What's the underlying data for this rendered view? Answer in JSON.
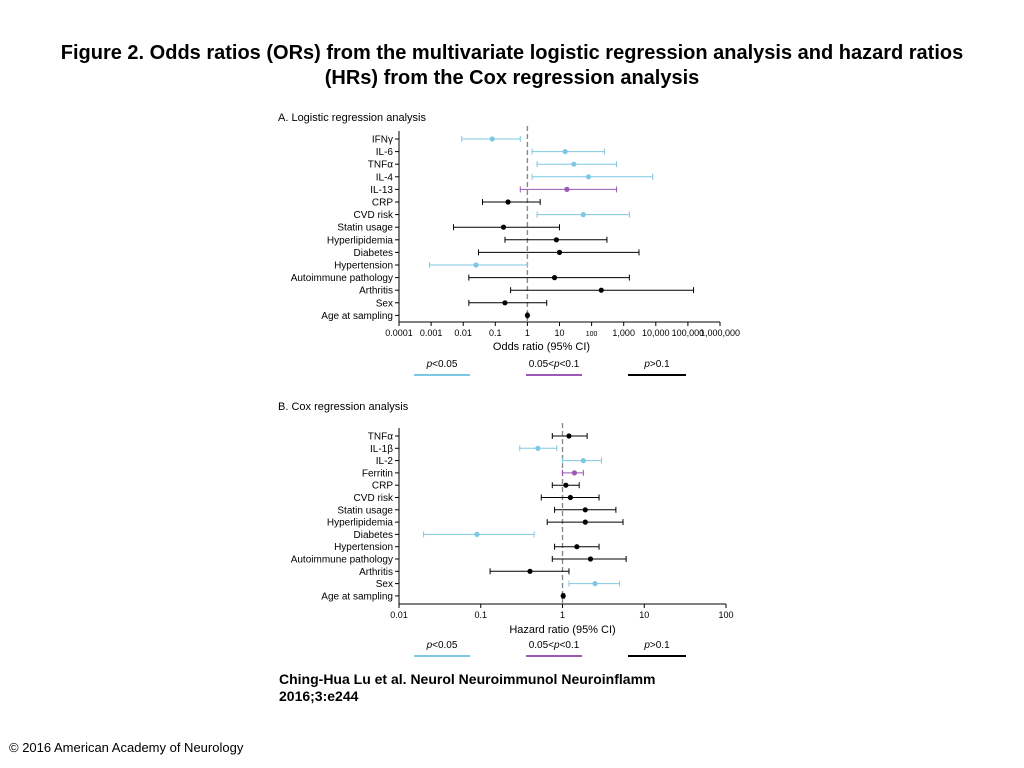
{
  "slide": {
    "title_line1": "Figure 2. Odds ratios (ORs) from the multivariate logistic regression analysis and hazard ratios",
    "title_line2": "(HRs) from the Cox regression analysis",
    "citation_line1": "Ching-Hua Lu et al. Neurol Neuroimmunol Neuroinflamm",
    "citation_line2": "2016;3:e244",
    "copyright": "© 2016 American Academy of Neurology"
  },
  "colors": {
    "significant": "#7ec8e3",
    "trend": "#9b59b6",
    "not_significant": "#000000",
    "reference_line": "#888888"
  },
  "chart_data": [
    {
      "type": "forest",
      "panel": "A. Logistic regression analysis",
      "xlabel": "Odds ratio (95% CI)",
      "xscale": "log",
      "xlim": [
        0.0001,
        1000000
      ],
      "reference_value": 1,
      "xticks": [
        {
          "value": 0.0001,
          "label": "0.0001"
        },
        {
          "value": 0.001,
          "label": "0.001"
        },
        {
          "value": 0.01,
          "label": "0.01"
        },
        {
          "value": 0.1,
          "label": "0.1"
        },
        {
          "value": 1,
          "label": "1"
        },
        {
          "value": 10,
          "label": "10"
        },
        {
          "value": 100,
          "label": "100"
        },
        {
          "value": 1000,
          "label": "1,000"
        },
        {
          "value": 10000,
          "label": "10,000"
        },
        {
          "value": 100000,
          "label": "100,000"
        },
        {
          "value": 1000000,
          "label": "1,000,000"
        }
      ],
      "legend": [
        {
          "label": "p<0.05",
          "group": "significant"
        },
        {
          "label": "0.05<p<0.1",
          "group": "trend"
        },
        {
          "label": "p>0.1",
          "group": "not_significant"
        }
      ],
      "rows": [
        {
          "label": "IFNγ",
          "or": 0.08,
          "lo": 0.009,
          "hi": 0.6,
          "group": "significant"
        },
        {
          "label": "IL-6",
          "or": 15,
          "lo": 1.4,
          "hi": 250,
          "group": "significant"
        },
        {
          "label": "TNFα",
          "or": 28,
          "lo": 2.0,
          "hi": 600,
          "group": "significant"
        },
        {
          "label": "IL-4",
          "or": 80,
          "lo": 1.4,
          "hi": 8000,
          "group": "significant"
        },
        {
          "label": "IL-13",
          "or": 17,
          "lo": 0.6,
          "hi": 600,
          "group": "trend"
        },
        {
          "label": "CRP",
          "or": 0.25,
          "lo": 0.04,
          "hi": 2.5,
          "group": "not_significant"
        },
        {
          "label": "CVD risk",
          "or": 55,
          "lo": 2.0,
          "hi": 1500,
          "group": "significant"
        },
        {
          "label": "Statin usage",
          "or": 0.18,
          "lo": 0.005,
          "hi": 10,
          "group": "not_significant"
        },
        {
          "label": "Hyperlipidemia",
          "or": 8,
          "lo": 0.2,
          "hi": 300,
          "group": "not_significant"
        },
        {
          "label": "Diabetes",
          "or": 10,
          "lo": 0.03,
          "hi": 3000,
          "group": "not_significant"
        },
        {
          "label": "Hypertension",
          "or": 0.025,
          "lo": 0.0009,
          "hi": 1.0,
          "group": "significant"
        },
        {
          "label": "Autoimmune pathology",
          "or": 7,
          "lo": 0.015,
          "hi": 1500,
          "group": "not_significant"
        },
        {
          "label": "Arthritis",
          "or": 200,
          "lo": 0.3,
          "hi": 150000,
          "group": "not_significant"
        },
        {
          "label": "Sex",
          "or": 0.2,
          "lo": 0.015,
          "hi": 4,
          "group": "not_significant"
        },
        {
          "label": "Age at sampling",
          "or": 1.0,
          "lo": 0.95,
          "hi": 1.05,
          "group": "not_significant"
        }
      ]
    },
    {
      "type": "forest",
      "panel": "B. Cox regression analysis",
      "xlabel": "Hazard ratio (95% CI)",
      "xscale": "log",
      "xlim": [
        0.01,
        100
      ],
      "reference_value": 1,
      "xticks": [
        {
          "value": 0.01,
          "label": "0.01"
        },
        {
          "value": 0.1,
          "label": "0.1"
        },
        {
          "value": 1,
          "label": "1"
        },
        {
          "value": 10,
          "label": "10"
        },
        {
          "value": 100,
          "label": "100"
        }
      ],
      "legend": [
        {
          "label": "p<0.05",
          "group": "significant"
        },
        {
          "label": "0.05<p<0.1",
          "group": "trend"
        },
        {
          "label": "p>0.1",
          "group": "not_significant"
        }
      ],
      "rows": [
        {
          "label": "TNFα",
          "or": 1.2,
          "lo": 0.75,
          "hi": 2.0,
          "group": "not_significant"
        },
        {
          "label": "IL-1β",
          "or": 0.5,
          "lo": 0.3,
          "hi": 0.85,
          "group": "significant"
        },
        {
          "label": "IL-2",
          "or": 1.8,
          "lo": 1.0,
          "hi": 3.0,
          "group": "significant"
        },
        {
          "label": "Ferritin",
          "or": 1.4,
          "lo": 1.0,
          "hi": 1.8,
          "group": "trend"
        },
        {
          "label": "CRP",
          "or": 1.1,
          "lo": 0.75,
          "hi": 1.6,
          "group": "not_significant"
        },
        {
          "label": "CVD risk",
          "or": 1.25,
          "lo": 0.55,
          "hi": 2.8,
          "group": "not_significant"
        },
        {
          "label": "Statin usage",
          "or": 1.9,
          "lo": 0.8,
          "hi": 4.5,
          "group": "not_significant"
        },
        {
          "label": "Hyperlipidemia",
          "or": 1.9,
          "lo": 0.65,
          "hi": 5.5,
          "group": "not_significant"
        },
        {
          "label": "Diabetes",
          "or": 0.09,
          "lo": 0.02,
          "hi": 0.45,
          "group": "significant"
        },
        {
          "label": "Hypertension",
          "or": 1.5,
          "lo": 0.8,
          "hi": 2.8,
          "group": "not_significant"
        },
        {
          "label": "Autoimmune pathology",
          "or": 2.2,
          "lo": 0.75,
          "hi": 6.0,
          "group": "not_significant"
        },
        {
          "label": "Arthritis",
          "or": 0.4,
          "lo": 0.13,
          "hi": 1.2,
          "group": "not_significant"
        },
        {
          "label": "Sex",
          "or": 2.5,
          "lo": 1.2,
          "hi": 5.0,
          "group": "significant"
        },
        {
          "label": "Age at sampling",
          "or": 1.02,
          "lo": 0.99,
          "hi": 1.05,
          "group": "not_significant"
        }
      ]
    }
  ]
}
